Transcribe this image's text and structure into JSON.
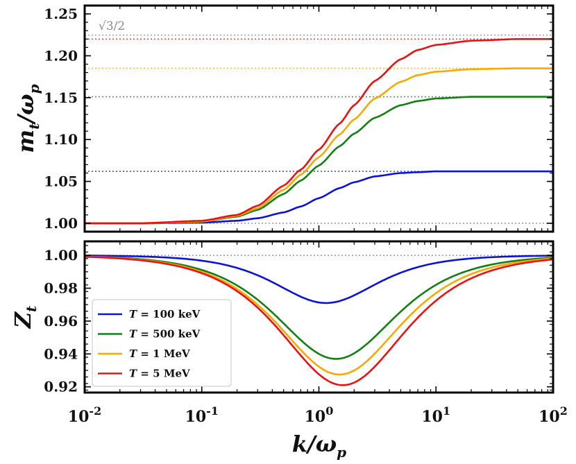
{
  "chart_data": [
    {
      "type": "line",
      "panel": "top",
      "ylabel": "m_t/ω_p",
      "ylabel_display": "mt/ωp",
      "xscale": "log",
      "xlim": [
        0.01,
        100
      ],
      "ylim": [
        0.99,
        1.26
      ],
      "yticks": [
        "1.00",
        "1.05",
        "1.10",
        "1.15",
        "1.20",
        "1.25"
      ],
      "ytick_values": [
        1.0,
        1.05,
        1.1,
        1.15,
        1.2,
        1.25
      ],
      "annotation": "√3/2",
      "reference_lines": [
        {
          "y": 1.0,
          "color": "#808080"
        },
        {
          "y": 1.2247,
          "color": "#808080"
        },
        {
          "y": 1.062,
          "color": "#0a10e0"
        },
        {
          "y": 1.151,
          "color": "#108010"
        },
        {
          "y": 1.185,
          "color": "#f8a800"
        },
        {
          "y": 1.22,
          "color": "#ee1010"
        }
      ],
      "series": [
        {
          "name": "T = 100 keV",
          "color": "#0a10e0",
          "asymptote": 1.062
        },
        {
          "name": "T = 500 keV",
          "color": "#108010",
          "asymptote": 1.151
        },
        {
          "name": "T = 1 MeV",
          "color": "#f8a800",
          "asymptote": 1.185
        },
        {
          "name": "T = 5 MeV",
          "color": "#ee1010",
          "asymptote": 1.22
        }
      ],
      "x": [
        0.01,
        0.03,
        0.1,
        0.2,
        0.3,
        0.5,
        0.7,
        1,
        1.5,
        2,
        3,
        5,
        7,
        10,
        20,
        50,
        100
      ],
      "series_values": {
        "T = 100 keV": [
          1.0,
          1.0,
          1.0008,
          1.003,
          1.006,
          1.013,
          1.02,
          1.03,
          1.042,
          1.049,
          1.056,
          1.06,
          1.061,
          1.062,
          1.062,
          1.062,
          1.062
        ],
        "T = 500 keV": [
          1.0,
          1.0,
          1.002,
          1.008,
          1.016,
          1.035,
          1.051,
          1.069,
          1.092,
          1.107,
          1.126,
          1.141,
          1.146,
          1.149,
          1.151,
          1.151,
          1.151
        ],
        "T = 1 MeV": [
          1.0,
          1.0,
          1.002,
          1.009,
          1.018,
          1.04,
          1.058,
          1.079,
          1.106,
          1.124,
          1.149,
          1.169,
          1.177,
          1.181,
          1.184,
          1.185,
          1.185
        ],
        "T = 5 MeV": [
          1.0,
          1.0,
          1.003,
          1.01,
          1.021,
          1.045,
          1.064,
          1.088,
          1.119,
          1.141,
          1.17,
          1.196,
          1.207,
          1.213,
          1.218,
          1.22,
          1.22
        ]
      }
    },
    {
      "type": "line",
      "panel": "bottom",
      "ylabel": "Z_t",
      "ylabel_display": "Zt",
      "xlabel": "k/ω_p",
      "xlabel_display": "k/ωp",
      "xscale": "log",
      "xlim": [
        0.01,
        100
      ],
      "ylim": [
        0.9165,
        1.0085
      ],
      "xticks": [
        "10^-2",
        "10^-1",
        "10^0",
        "10^1",
        "10^2"
      ],
      "xtick_values": [
        0.01,
        0.1,
        1,
        10,
        100
      ],
      "yticks": [
        "0.92",
        "0.94",
        "0.96",
        "0.98",
        "1.00"
      ],
      "ytick_values": [
        0.92,
        0.94,
        0.96,
        0.98,
        1.0
      ],
      "reference_lines": [
        {
          "y": 1.0,
          "color": "#808080"
        }
      ],
      "legend": {
        "position": "lower-left",
        "entries": [
          "T = 100 keV",
          "T = 500 keV",
          "T = 1 MeV",
          "T = 5 MeV"
        ]
      },
      "series": [
        {
          "name": "T = 100 keV",
          "color": "#0a10e0",
          "min_x": 1.15,
          "min_y": 0.971,
          "width": 0.42
        },
        {
          "name": "T = 500 keV",
          "color": "#108010",
          "min_x": 1.4,
          "min_y": 0.937,
          "width": 0.49
        },
        {
          "name": "T = 1 MeV",
          "color": "#f8a800",
          "min_x": 1.5,
          "min_y": 0.9275,
          "width": 0.5
        },
        {
          "name": "T = 5 MeV",
          "color": "#ee1010",
          "min_x": 1.6,
          "min_y": 0.921,
          "width": 0.51
        }
      ]
    }
  ],
  "legend_labels": [
    {
      "var": "T",
      "rest": " = 100 keV"
    },
    {
      "var": "T",
      "rest": " = 500 keV"
    },
    {
      "var": "T",
      "rest": " = 1 MeV"
    },
    {
      "var": "T",
      "rest": " = 5 MeV"
    }
  ]
}
